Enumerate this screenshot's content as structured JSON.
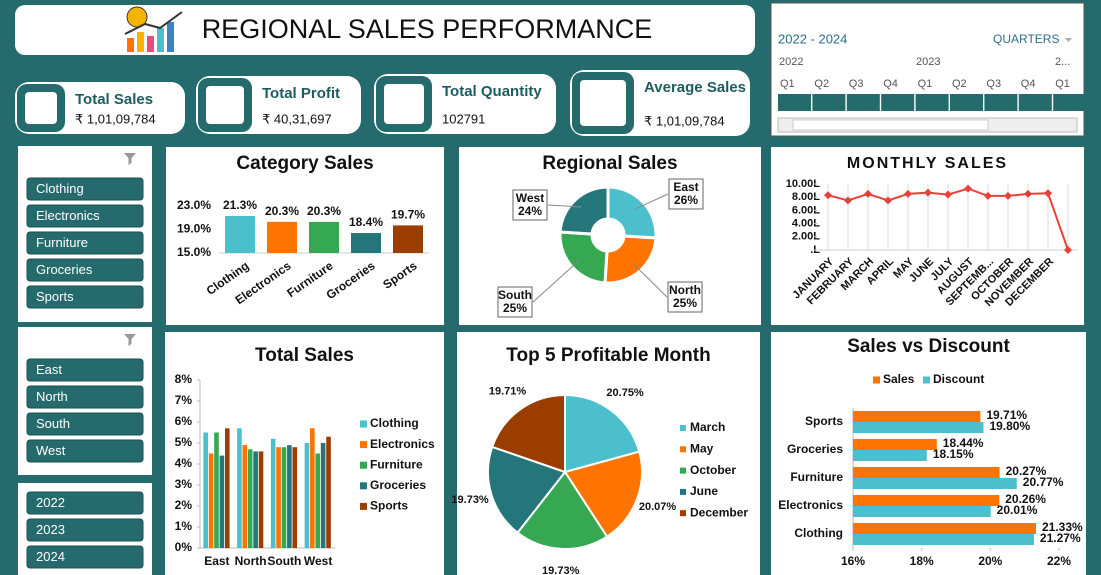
{
  "header": {
    "title": "REGIONAL SALES PERFORMANCE"
  },
  "kpis": [
    {
      "label": "Total Sales",
      "value": "₹ 1,01,09,784"
    },
    {
      "label": "Total Profit",
      "value": "₹ 40,31,697"
    },
    {
      "label": "Total Quantity",
      "value": "102791"
    },
    {
      "label": "Average Sales",
      "value": "₹ 1,01,09,784"
    }
  ],
  "timeline": {
    "range": "2022 - 2024",
    "level": "QUARTERS",
    "years": [
      "2022",
      "2023",
      "2..."
    ],
    "quarters": [
      "Q1",
      "Q2",
      "Q3",
      "Q4",
      "Q1",
      "Q2",
      "Q3",
      "Q4",
      "Q1"
    ]
  },
  "slicers": [
    {
      "items": [
        "Clothing",
        "Electronics",
        "Furniture",
        "Groceries",
        "Sports"
      ]
    },
    {
      "items": [
        "East",
        "North",
        "South",
        "West"
      ]
    },
    {
      "items": [
        "2022",
        "2023",
        "2024"
      ]
    }
  ],
  "chart_data": [
    {
      "type": "bar",
      "title": "Category Sales",
      "categories": [
        "Clothing",
        "Electronics",
        "Furniture",
        "Groceries",
        "Sports"
      ],
      "values": [
        21.3,
        20.3,
        20.3,
        18.4,
        19.7
      ],
      "value_labels": [
        "21.3%",
        "20.3%",
        "20.3%",
        "18.4%",
        "19.7%"
      ],
      "colors": [
        "#4bbfcb",
        "#ff7300",
        "#36a852",
        "#25767a",
        "#9c3d00"
      ],
      "ylim": [
        15,
        23
      ],
      "yticks": [
        {
          "value": 15,
          "label": "15.0%"
        },
        {
          "value": 19,
          "label": "19.0%"
        },
        {
          "value": 23,
          "label": "23.0%"
        }
      ]
    },
    {
      "type": "donut",
      "title": "Regional Sales",
      "categories": [
        "East",
        "North",
        "South",
        "West"
      ],
      "values": [
        26,
        25,
        25,
        24
      ],
      "value_labels": [
        "26%",
        "25%",
        "25%",
        "24%"
      ],
      "colors": [
        "#4bbfcb",
        "#ff7300",
        "#36a852",
        "#25767a"
      ]
    },
    {
      "type": "line",
      "title": "MONTHLY SALES",
      "categories": [
        "JANUARY",
        "FEBRUARY",
        "MARCH",
        "APRIL",
        "MAY",
        "JUNE",
        "JULY",
        "AUGUST",
        "SEPTEMB...",
        "OCTOBER",
        "NOVEMBER",
        "DECEMBER",
        null
      ],
      "values": [
        8.3,
        7.5,
        8.5,
        7.5,
        8.5,
        8.7,
        8.4,
        9.3,
        8.2,
        8.2,
        8.5,
        8.6,
        0
      ],
      "color": "#e8413a",
      "ylim": [
        0,
        10
      ],
      "yticks": [
        {
          "value": 0,
          "label": ".L"
        },
        {
          "value": 2,
          "label": "2.00L"
        },
        {
          "value": 4,
          "label": "4.00L"
        },
        {
          "value": 6,
          "label": "6.00L"
        },
        {
          "value": 8,
          "label": "8.00L"
        },
        {
          "value": 10,
          "label": "10.00L"
        }
      ],
      "grid": true
    },
    {
      "type": "bar",
      "title": "Total Sales",
      "categories": [
        "East",
        "North",
        "South",
        "West"
      ],
      "series": [
        {
          "name": "Clothing",
          "color": "#4bbfcb",
          "values": [
            5.5,
            5.7,
            5.2,
            5.0
          ]
        },
        {
          "name": "Electronics",
          "color": "#ff7300",
          "values": [
            4.5,
            4.9,
            4.8,
            5.7
          ]
        },
        {
          "name": "Furniture",
          "color": "#36a852",
          "values": [
            5.5,
            4.7,
            4.8,
            4.5
          ]
        },
        {
          "name": "Groceries",
          "color": "#25767a",
          "values": [
            4.4,
            4.6,
            4.9,
            5.0
          ]
        },
        {
          "name": "Sports",
          "color": "#9c3d00",
          "values": [
            5.7,
            4.6,
            4.8,
            5.3
          ]
        }
      ],
      "ylim": [
        0,
        8
      ],
      "yticks": [
        {
          "value": 0,
          "label": "0%"
        },
        {
          "value": 1,
          "label": "1%"
        },
        {
          "value": 2,
          "label": "2%"
        },
        {
          "value": 3,
          "label": "3%"
        },
        {
          "value": 4,
          "label": "4%"
        },
        {
          "value": 5,
          "label": "5%"
        },
        {
          "value": 6,
          "label": "6%"
        },
        {
          "value": 7,
          "label": "7%"
        },
        {
          "value": 8,
          "label": "8%"
        }
      ],
      "legend": "right"
    },
    {
      "type": "pie",
      "title": "Top 5 Profitable Month",
      "categories": [
        "March",
        "May",
        "October",
        "June",
        "December"
      ],
      "values": [
        20.75,
        20.07,
        19.73,
        19.73,
        19.71
      ],
      "value_labels": [
        "20.75%",
        "20.07%",
        "19.73%",
        "19.73%",
        "19.71%"
      ],
      "colors": [
        "#4bbfcb",
        "#ff7300",
        "#36a852",
        "#25767a",
        "#9c3d00"
      ],
      "legend": "right"
    },
    {
      "type": "barh",
      "title": "Sales vs Discount",
      "categories": [
        "Sports",
        "Groceries",
        "Furniture",
        "Electronics",
        "Clothing"
      ],
      "series": [
        {
          "name": "Sales",
          "color": "#ff7300",
          "values": [
            19.71,
            18.44,
            20.27,
            20.26,
            21.33
          ],
          "value_labels": [
            "19.71%",
            "18.44%",
            "20.27%",
            "20.26%",
            "21.33%"
          ]
        },
        {
          "name": "Discount",
          "color": "#4bbfcb",
          "values": [
            19.8,
            18.15,
            20.77,
            20.01,
            21.27
          ],
          "value_labels": [
            "19.80%",
            "18.15%",
            "20.77%",
            "20.01%",
            "21.27%"
          ]
        }
      ],
      "xlim": [
        16,
        22
      ],
      "xticks": [
        {
          "value": 16,
          "label": "16%"
        },
        {
          "value": 18,
          "label": "18%"
        },
        {
          "value": 20,
          "label": "20%"
        },
        {
          "value": 22,
          "label": "22%"
        }
      ],
      "legend": "top"
    }
  ]
}
